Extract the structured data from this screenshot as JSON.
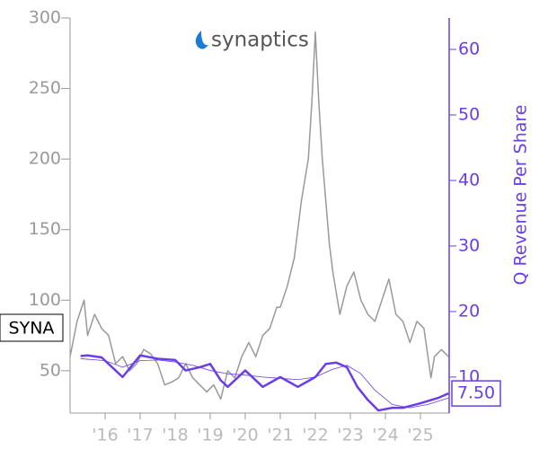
{
  "chart_data": {
    "type": "line",
    "logo_text": "synaptics",
    "ticker": "SYNA",
    "y2label": "Q Revenue Per Share",
    "xlim": [
      2015.0,
      2025.82
    ],
    "xticks": [
      {
        "value": 2016,
        "label": "'16"
      },
      {
        "value": 2017,
        "label": "'17"
      },
      {
        "value": 2018,
        "label": "'18"
      },
      {
        "value": 2019,
        "label": "'19"
      },
      {
        "value": 2020,
        "label": "'20"
      },
      {
        "value": 2021,
        "label": "'21"
      },
      {
        "value": 2022,
        "label": "'22"
      },
      {
        "value": 2023,
        "label": "'23"
      },
      {
        "value": 2024,
        "label": "'24"
      },
      {
        "value": 2025,
        "label": "'25"
      }
    ],
    "ylim": [
      20,
      300
    ],
    "yticks": [
      50,
      100,
      150,
      200,
      250,
      300
    ],
    "y2lim": [
      4.5,
      64.8
    ],
    "y2ticks": [
      10,
      20,
      30,
      40,
      50,
      60
    ],
    "series": [
      {
        "color": "#999999",
        "axis": "y",
        "width": 1.5,
        "x": [
          2015.0,
          2015.2,
          2015.4,
          2015.5,
          2015.7,
          2015.9,
          2016.1,
          2016.3,
          2016.5,
          2016.7,
          2016.9,
          2017.1,
          2017.3,
          2017.5,
          2017.7,
          2017.9,
          2018.1,
          2018.3,
          2018.5,
          2018.7,
          2018.9,
          2019.1,
          2019.3,
          2019.5,
          2019.7,
          2019.9,
          2020.1,
          2020.3,
          2020.5,
          2020.7,
          2020.9,
          2021.0,
          2021.2,
          2021.4,
          2021.6,
          2021.8,
          2021.9,
          2022.0,
          2022.1,
          2022.2,
          2022.3,
          2022.4,
          2022.5,
          2022.7,
          2022.9,
          2023.1,
          2023.3,
          2023.5,
          2023.7,
          2023.9,
          2024.1,
          2024.3,
          2024.5,
          2024.7,
          2024.9,
          2025.1,
          2025.3,
          2025.4,
          2025.6,
          2025.8
        ],
        "values": [
          60,
          85,
          100,
          75,
          90,
          80,
          75,
          55,
          60,
          50,
          55,
          65,
          62,
          55,
          40,
          42,
          45,
          55,
          45,
          40,
          35,
          40,
          30,
          50,
          45,
          60,
          70,
          60,
          75,
          80,
          95,
          95,
          110,
          130,
          170,
          200,
          240,
          290,
          240,
          200,
          170,
          140,
          120,
          90,
          110,
          120,
          100,
          90,
          85,
          100,
          115,
          90,
          85,
          70,
          85,
          80,
          45,
          60,
          65,
          60
        ]
      },
      {
        "color": "#6a3de8",
        "axis": "y2",
        "width": 2.5,
        "x": [
          2015.3,
          2015.5,
          2015.9,
          2016.5,
          2017.0,
          2017.5,
          2018.0,
          2018.3,
          2018.7,
          2019.0,
          2019.3,
          2019.5,
          2020.0,
          2020.5,
          2021.0,
          2021.5,
          2022.0,
          2022.3,
          2022.6,
          2022.9,
          2023.2,
          2023.5,
          2023.8,
          2024.2,
          2024.5,
          2025.0,
          2025.5,
          2025.8
        ],
        "values": [
          13.2,
          13.3,
          13,
          10,
          13.3,
          12.8,
          12.6,
          11,
          11.5,
          12,
          9.5,
          8.5,
          11,
          8.5,
          10,
          8.5,
          10,
          12,
          12.2,
          11.5,
          8.5,
          6.5,
          4.9,
          5.3,
          5.3,
          6,
          6.8,
          7.5
        ],
        "value_labels": [
          null,
          null,
          null,
          null,
          null,
          null,
          null,
          null,
          null,
          null,
          null,
          null,
          null,
          null,
          null,
          null,
          null,
          null,
          null,
          null,
          null,
          null,
          null,
          null,
          null,
          null,
          null,
          "7.50"
        ]
      },
      {
        "color": "#6a3de8",
        "axis": "y2",
        "width": 0.8,
        "x": [
          2015.3,
          2016.0,
          2016.5,
          2017.0,
          2017.5,
          2018.0,
          2018.5,
          2019.0,
          2019.5,
          2020.0,
          2020.5,
          2021.0,
          2021.5,
          2022.0,
          2022.5,
          2022.9,
          2023.3,
          2023.7,
          2024.2,
          2024.7,
          2025.2,
          2025.8
        ],
        "values": [
          12.8,
          12.5,
          11.5,
          12.5,
          12.6,
          12.3,
          11.8,
          11,
          10.5,
          10.3,
          10,
          9.8,
          9.6,
          10,
          11.2,
          11.8,
          10.5,
          8,
          5.8,
          5.3,
          5.8,
          6.8
        ]
      }
    ]
  }
}
